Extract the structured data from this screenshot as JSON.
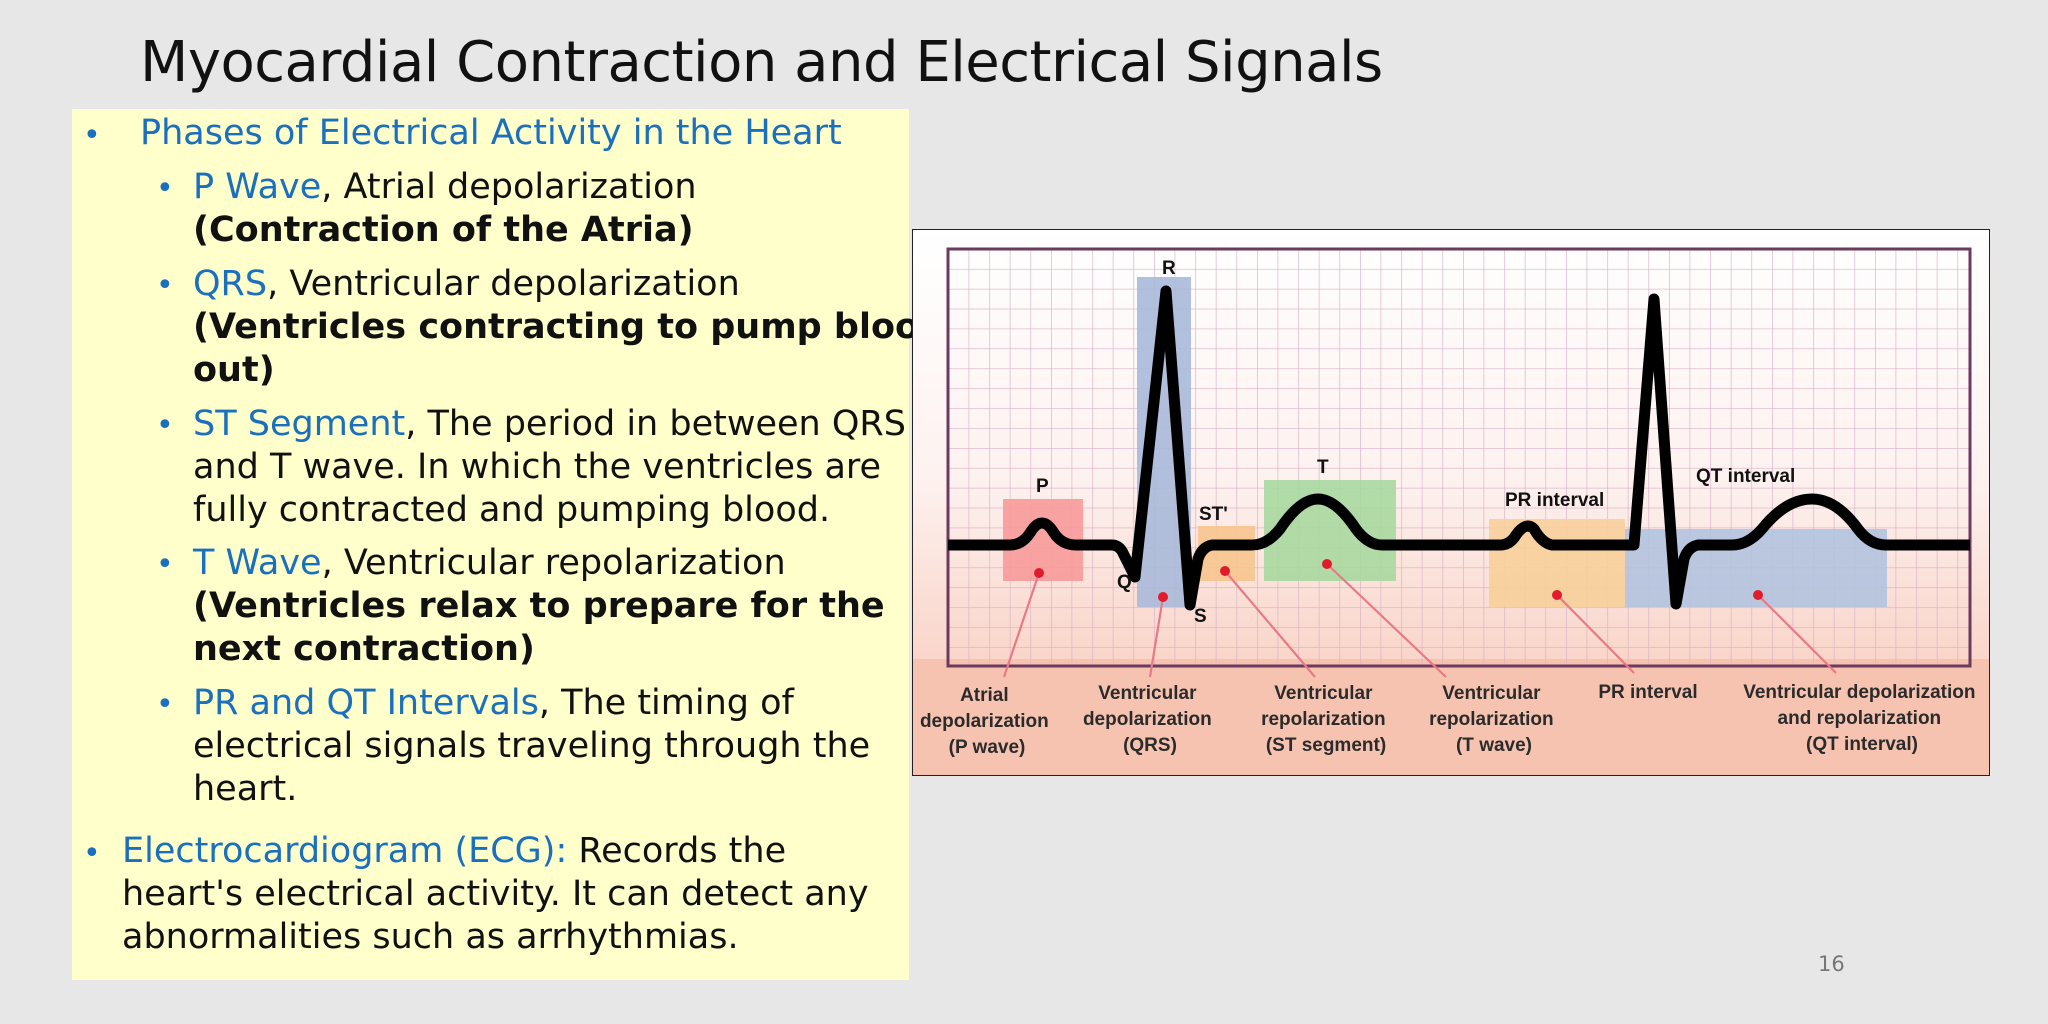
{
  "slide": {
    "title": "Myocardial Contraction and Electrical Signals",
    "page_number": "16"
  },
  "content": {
    "bullet_char": "•",
    "section1": {
      "heading": "Phases of Electrical Activity in the Heart",
      "items": [
        {
          "term": "P Wave",
          "desc": ", Atrial depolarization",
          "note": "(Contraction of the Atria)"
        },
        {
          "term": "QRS",
          "desc": ", Ventricular depolarization",
          "note_line1": "(Ventricles contracting to pump blood",
          "note_line2": "out)"
        },
        {
          "term": "ST Segment",
          "desc": ", The period in between QRS",
          "line2": "and T wave. In which the ventricles are",
          "line3": "fully contracted and pumping blood."
        },
        {
          "term": "T Wave",
          "desc": ", Ventricular repolarization",
          "note_line1": "(Ventricles relax to prepare for the",
          "note_line2": "next contraction)"
        },
        {
          "term": "PR and QT Intervals",
          "desc": ", The timing of",
          "line2": "electrical signals traveling through the",
          "line3": "heart."
        }
      ]
    },
    "section2": {
      "term": "Electrocardiogram (ECG):",
      "desc": " Records the",
      "line2": "heart's electrical activity. It can detect any",
      "line3": "abnormalities such as arrhythmias."
    }
  },
  "ecg": {
    "wave_labels": {
      "p": "P",
      "r": "R",
      "q": "Q",
      "s": "S",
      "st": "ST'",
      "t": "T",
      "pr_interval": "PR interval",
      "qt_interval": "QT interval"
    },
    "captions": [
      [
        "Atrial",
        "depolarization",
        "(P wave)"
      ],
      [
        "Ventricular",
        "depolarization",
        "(QRS)"
      ],
      [
        "Ventricular",
        "repolarization",
        "(ST segment)"
      ],
      [
        "Ventricular",
        "repolarization",
        "(T wave)"
      ],
      [
        "PR interval"
      ],
      [
        "Ventricular depolarization",
        "and repolarization",
        "(QT interval)"
      ]
    ],
    "colors": {
      "p_box": "#f79a9a",
      "qrs_box": "#a9b9d9",
      "st_box": "#f7c48e",
      "t_box": "#a9d8a0",
      "pr_box": "#f7cf9a",
      "qt_box": "#b3c3df",
      "grid": "#d8b0c8",
      "pointer": "#e87a86",
      "caption_band": "#f7c3b1"
    }
  }
}
